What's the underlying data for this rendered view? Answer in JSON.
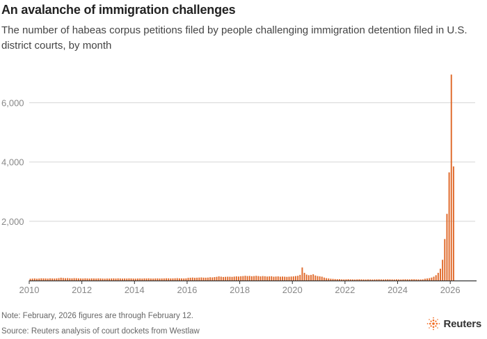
{
  "header": {
    "title": "An avalanche of immigration challenges",
    "subtitle": "The number of habeas corpus petitions filed by people challenging immigration detention filed in U.S. district courts, by month"
  },
  "footer": {
    "note": "Note: February, 2026 figures are through February 12.",
    "source": "Source: Reuters analysis of court dockets from Westlaw",
    "logo_text": "Reuters"
  },
  "colors": {
    "bar": "#e06a2b",
    "grid": "#d5d5d5",
    "tick_text": "#888888",
    "axis": "#333333"
  },
  "chart_data": {
    "type": "bar",
    "title": "An avalanche of immigration challenges",
    "subtitle": "The number of habeas corpus petitions filed by people challenging immigration detention filed in U.S. district courts, by month",
    "xlabel": "",
    "ylabel": "",
    "x_start": "2010-01",
    "x_end": "2026-02",
    "ylim": [
      0,
      7000
    ],
    "yticks": [
      2000,
      4000,
      6000
    ],
    "ytick_labels": [
      "2,000",
      "4,000",
      "6,000"
    ],
    "xticks": [
      "2010",
      "2012",
      "2014",
      "2016",
      "2018",
      "2020",
      "2022",
      "2024",
      "2026"
    ],
    "grid": true,
    "legend": "none",
    "series": [
      {
        "values": [
          60,
          65,
          70,
          62,
          68,
          75,
          72,
          70,
          66,
          74,
          70,
          68,
          72,
          80,
          95,
          85,
          78,
          82,
          76,
          74,
          80,
          78,
          72,
          70,
          68,
          74,
          70,
          66,
          72,
          70,
          68,
          72,
          70,
          66,
          64,
          68,
          66,
          70,
          72,
          68,
          74,
          70,
          66,
          70,
          68,
          72,
          70,
          66,
          64,
          68,
          70,
          66,
          72,
          70,
          74,
          68,
          66,
          70,
          72,
          68,
          70,
          72,
          76,
          74,
          70,
          72,
          76,
          80,
          74,
          72,
          70,
          74,
          90,
          95,
          100,
          92,
          96,
          100,
          104,
          98,
          96,
          100,
          110,
          105,
          115,
          125,
          140,
          130,
          120,
          125,
          130,
          128,
          124,
          132,
          140,
          135,
          145,
          150,
          160,
          150,
          155,
          145,
          150,
          160,
          150,
          140,
          150,
          145,
          135,
          140,
          145,
          130,
          135,
          140,
          130,
          135,
          130,
          125,
          130,
          135,
          140,
          150,
          160,
          190,
          440,
          260,
          200,
          180,
          190,
          210,
          170,
          150,
          140,
          130,
          100,
          80,
          70,
          60,
          55,
          50,
          45,
          45,
          40,
          38,
          40,
          45,
          40,
          38,
          35,
          40,
          42,
          40,
          38,
          36,
          40,
          38,
          35,
          38,
          40,
          42,
          38,
          36,
          40,
          42,
          40,
          38,
          36,
          40,
          38,
          36,
          40,
          42,
          40,
          38,
          42,
          44,
          40,
          38,
          36,
          40,
          60,
          70,
          80,
          100,
          130,
          180,
          260,
          400,
          700,
          1400,
          2250,
          3650,
          6950,
          3850
        ]
      }
    ]
  }
}
